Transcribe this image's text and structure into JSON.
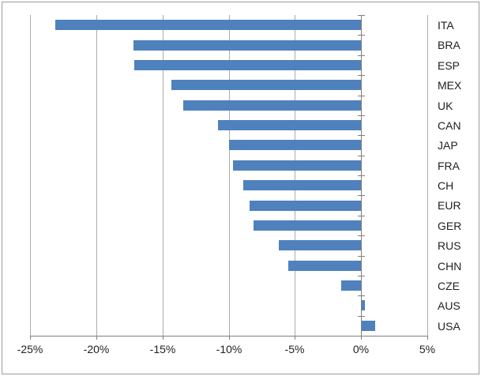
{
  "chart_data": {
    "type": "bar",
    "orientation": "horizontal",
    "title": "",
    "categories": [
      "ITA",
      "BRA",
      "ESP",
      "MEX",
      "UK",
      "CAN",
      "JAP",
      "FRA",
      "CH",
      "EUR",
      "GER",
      "RUS",
      "CHN",
      "CZE",
      "AUS",
      "USA"
    ],
    "values": [
      -23.1,
      -17.2,
      -17.1,
      -14.3,
      -13.4,
      -10.8,
      -10.0,
      -9.7,
      -8.9,
      -8.4,
      -8.1,
      -6.2,
      -5.5,
      -1.5,
      0.3,
      1.1
    ],
    "value_unit": "%",
    "xlim": [
      -25,
      5
    ],
    "x_ticks": [
      -25,
      -20,
      -15,
      -10,
      -5,
      0,
      5
    ],
    "x_tick_labels": [
      "-25%",
      "-20%",
      "-15%",
      "-10%",
      "-5%",
      "0%",
      "5%"
    ],
    "grid": true,
    "legend": false,
    "category_labels_position": "right",
    "colors": {
      "bar": "#4F81BD",
      "gridline": "#ababab",
      "axis": "#7f7f7f",
      "text": "#1f1f1f",
      "chart_border": "#9b9b9b",
      "background": "#ffffff"
    }
  }
}
